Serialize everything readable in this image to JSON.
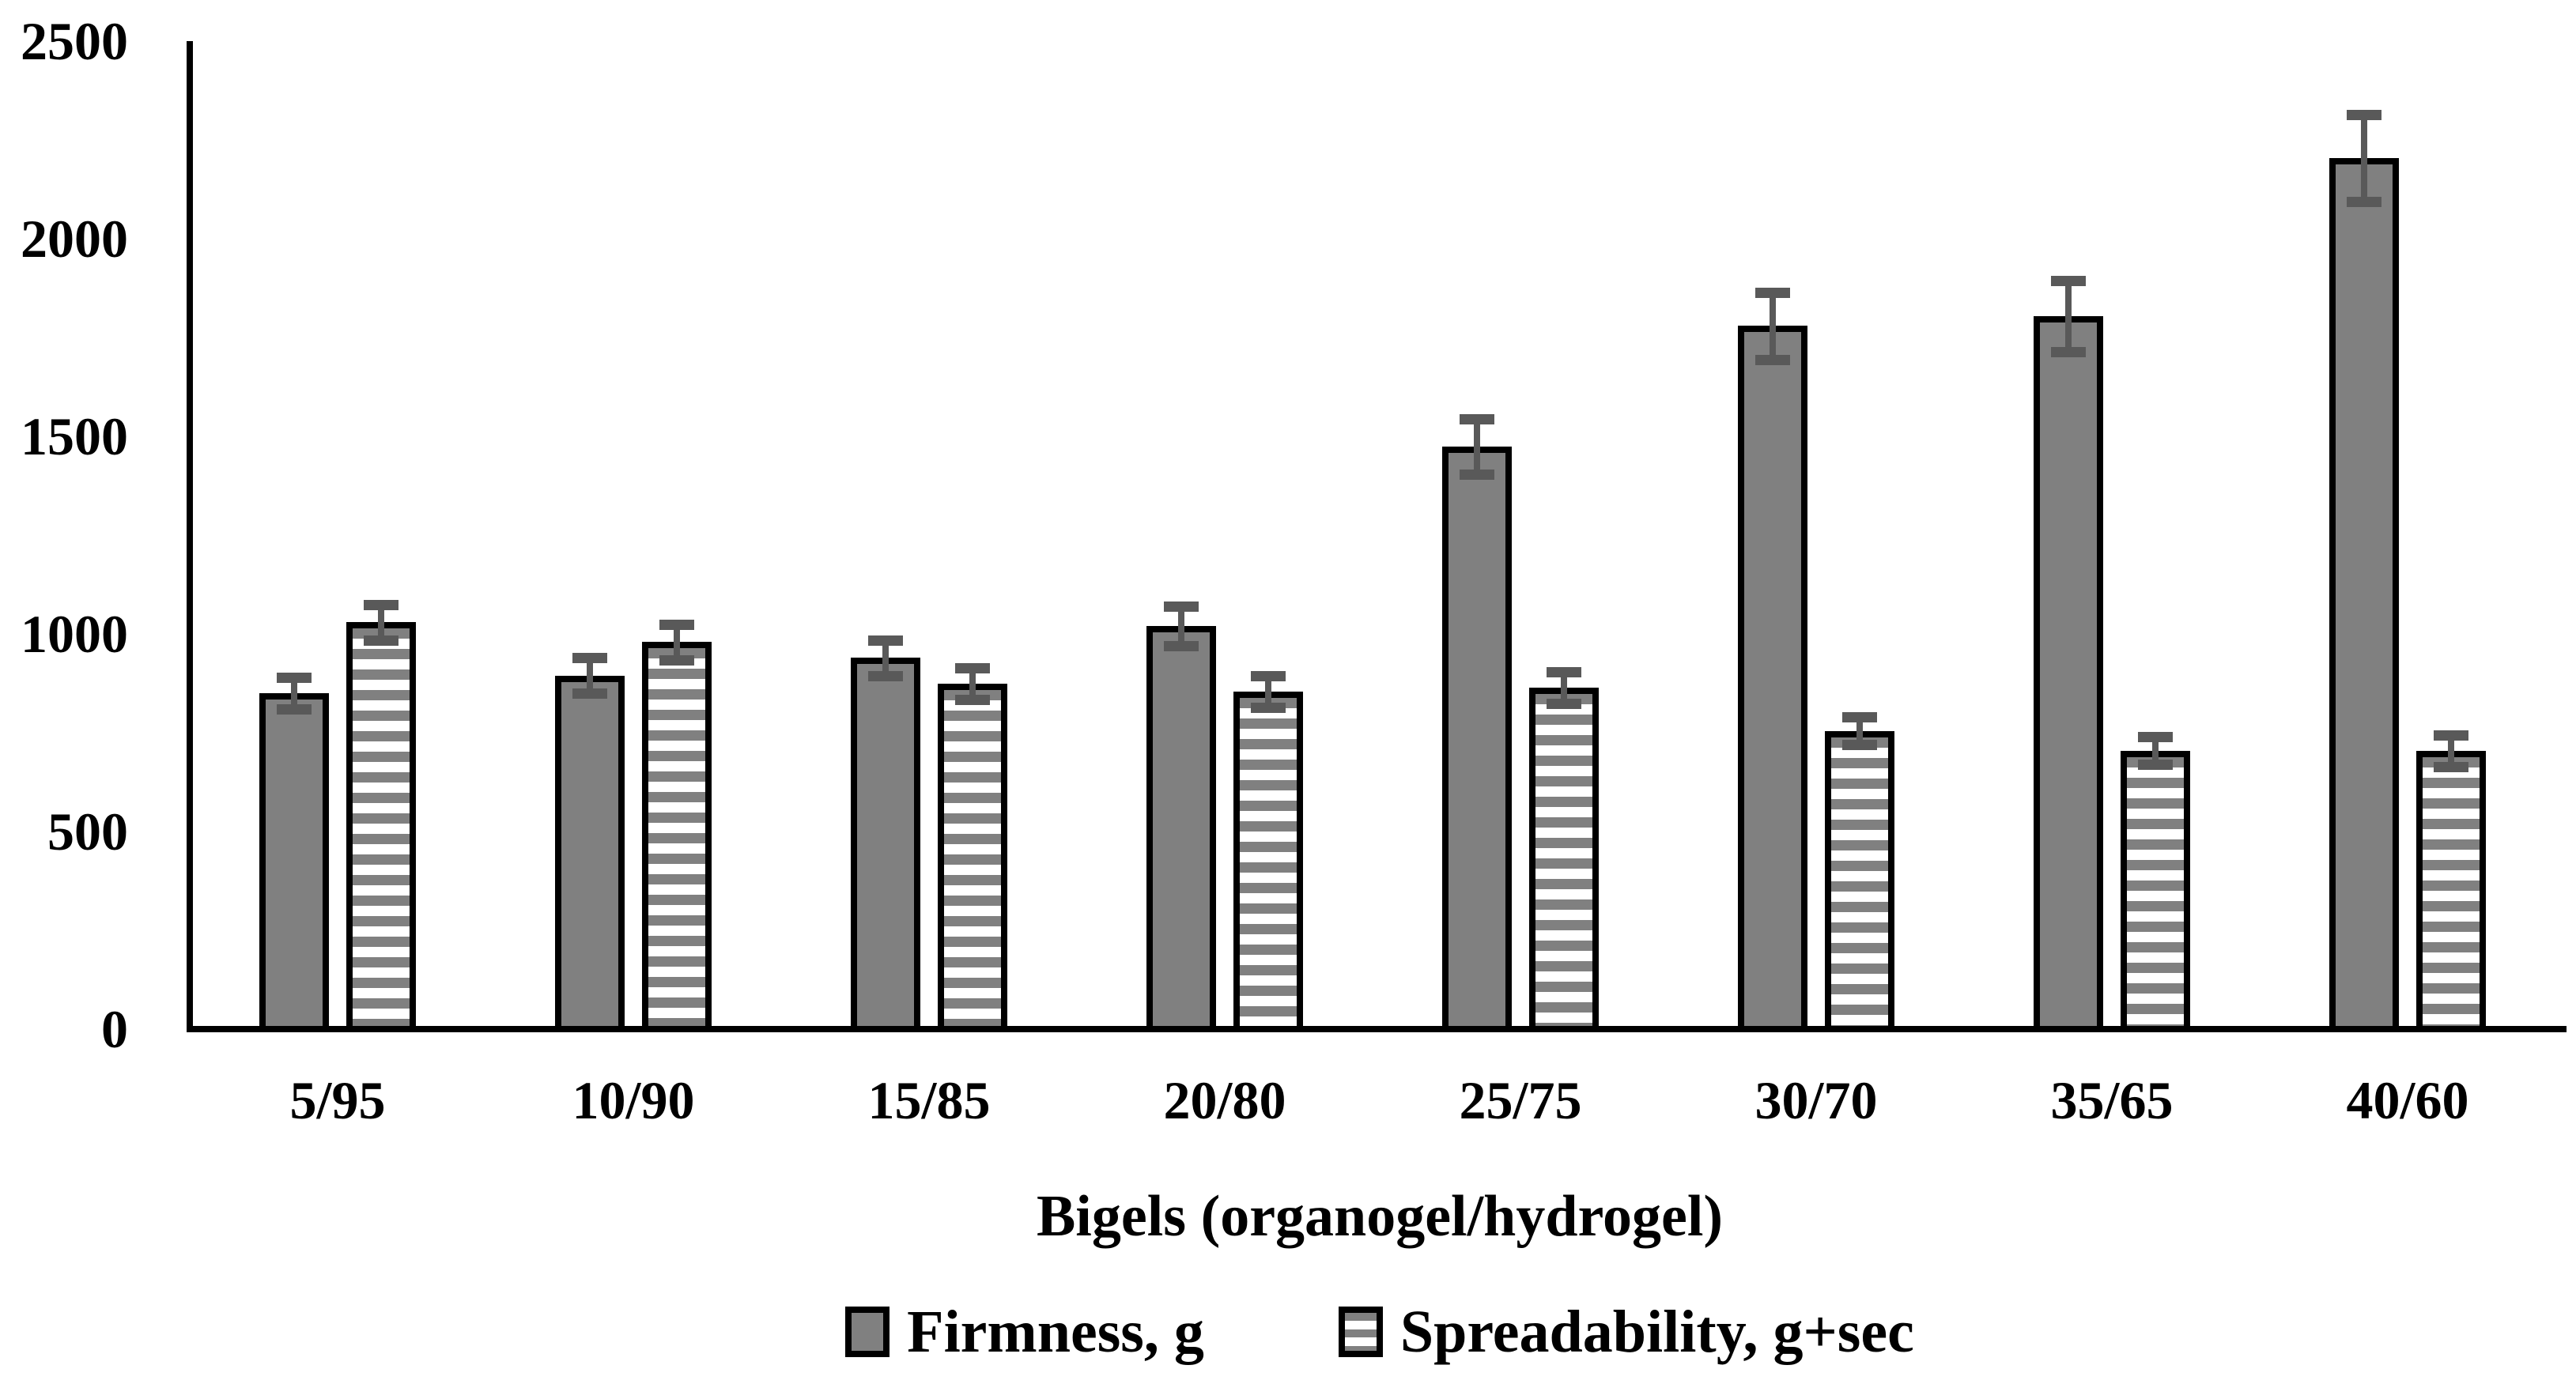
{
  "chart_data": {
    "type": "bar",
    "title": "",
    "xlabel": "Bigels (organogel/hydrogel)",
    "ylabel": "",
    "ylim": [
      0,
      2500
    ],
    "yticks": [
      0,
      500,
      1000,
      1500,
      2000,
      2500
    ],
    "categories": [
      "5/95",
      "10/90",
      "15/85",
      "20/80",
      "25/75",
      "30/70",
      "35/65",
      "40/60"
    ],
    "series": [
      {
        "name": "Firmness, g",
        "style": "solid",
        "values": [
          850,
          895,
          940,
          1020,
          1475,
          1780,
          1805,
          2205
        ],
        "errors": [
          40,
          45,
          45,
          50,
          70,
          85,
          90,
          110
        ]
      },
      {
        "name": "Spreadability, g+sec",
        "style": "striped",
        "values": [
          1030,
          980,
          875,
          855,
          865,
          755,
          705,
          705
        ],
        "errors": [
          45,
          45,
          40,
          40,
          40,
          35,
          35,
          40
        ]
      }
    ],
    "legend_position": "bottom",
    "grid": false,
    "error_bars": true,
    "colors": {
      "bar_fill": "#808080",
      "bar_border": "#000000",
      "error_bar": "#595959",
      "background": "#ffffff",
      "text": "#000000"
    }
  },
  "legend": {
    "items": [
      {
        "label": "Firmness, g",
        "swatch": "solid-gray-square"
      },
      {
        "label": "Spreadability, g+sec",
        "swatch": "striped-gray-square"
      }
    ]
  }
}
